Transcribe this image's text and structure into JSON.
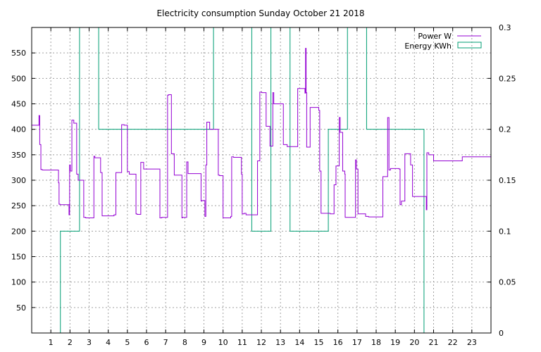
{
  "chart_data": {
    "type": "line",
    "title": "Electricity consumption Sunday October 21 2018",
    "xlim": [
      0,
      24
    ],
    "ylim": [
      0,
      600
    ],
    "y2lim": [
      0,
      0.3
    ],
    "x_ticks": [
      "1",
      "2",
      "3",
      "4",
      "5",
      "6",
      "7",
      "8",
      "9",
      "10",
      "11",
      "12",
      "13",
      "14",
      "15",
      "16",
      "17",
      "18",
      "19",
      "20",
      "21",
      "22",
      "23"
    ],
    "y_ticks": [
      "50",
      "100",
      "150",
      "200",
      "250",
      "300",
      "350",
      "400",
      "450",
      "500",
      "550"
    ],
    "y2_ticks": [
      "0",
      "0.05",
      "0.1",
      "0.15",
      "0.2",
      "0.25",
      "0.3"
    ],
    "grid": true,
    "legend_position": "top-right",
    "colors": {
      "power": "#9400d3",
      "energy": "#009e73",
      "grid": "#a0a0a0"
    },
    "series": [
      {
        "name": "Power W",
        "axis": "left",
        "style": "step-line",
        "x": [
          0,
          0.38,
          0.42,
          0.48,
          0.55,
          1.4,
          1.43,
          1.48,
          1.95,
          1.98,
          2.02,
          2.1,
          2.2,
          2.35,
          2.43,
          2.72,
          2.82,
          3.25,
          3.3,
          3.6,
          3.68,
          4.3,
          4.4,
          4.7,
          4.83,
          5.0,
          5.1,
          5.45,
          5.5,
          5.7,
          5.85,
          6.7,
          6.8,
          7.1,
          7.15,
          7.3,
          7.45,
          7.85,
          7.88,
          8.1,
          8.17,
          8.85,
          8.9,
          9.05,
          9.1,
          9.15,
          9.3,
          9.75,
          9.82,
          10.0,
          10.4,
          10.45,
          10.55,
          10.96,
          11.0,
          11.1,
          11.2,
          11.8,
          11.92,
          12.02,
          12.25,
          12.45,
          12.6,
          12.65,
          13.15,
          13.35,
          13.9,
          14.28,
          14.31,
          14.34,
          14.37,
          14.55,
          15.0,
          15.05,
          15.12,
          15.6,
          15.8,
          15.9,
          16.07,
          16.12,
          16.25,
          16.31,
          16.36,
          16.38,
          16.92,
          16.97,
          17.05,
          17.45,
          17.6,
          18.35,
          18.6,
          18.67,
          18.75,
          19.2,
          19.25,
          19.32,
          19.5,
          19.8,
          19.9,
          20.05,
          20.62,
          20.65,
          20.75,
          21.0,
          21.1,
          21.4,
          22.5,
          24.0
        ],
        "values": [
          408,
          427,
          370,
          321,
          320,
          295,
          253,
          252,
          232,
          330,
          318,
          418,
          412,
          312,
          300,
          227,
          226,
          347,
          344,
          315,
          230,
          232,
          315,
          409,
          408,
          317,
          312,
          234,
          233,
          335,
          322,
          226,
          227,
          467,
          468,
          352,
          310,
          226,
          227,
          336,
          313,
          259,
          260,
          229,
          330,
          414,
          400,
          310,
          309,
          226,
          229,
          346,
          345,
          312,
          234,
          235,
          232,
          338,
          473,
          472,
          406,
          367,
          472,
          450,
          370,
          366,
          480,
          471,
          559,
          472,
          365,
          443,
          437,
          318,
          235,
          234,
          291,
          328,
          423,
          394,
          318,
          318,
          312,
          227,
          340,
          322,
          234,
          229,
          228,
          307,
          423,
          320,
          323,
          322,
          252,
          259,
          352,
          330,
          268,
          268,
          242,
          354,
          350,
          338,
          338,
          338,
          346,
          346
        ]
      },
      {
        "name": "Energy KWh",
        "axis": "right",
        "style": "histogram-steps",
        "x": [
          0.5,
          1.5,
          2.5,
          3.5,
          4.5,
          5.5,
          6.5,
          7.5,
          8.5,
          9.5,
          10.5,
          11.5,
          12.5,
          13.5,
          14.5,
          15.5,
          16.5,
          17.5,
          18.5,
          19.5,
          20.5,
          21.5,
          22.5,
          23.5
        ],
        "values": [
          0,
          0.1,
          0.3,
          0.2,
          0.2,
          0.2,
          0.2,
          0.2,
          0.2,
          0.3,
          0.3,
          0.1,
          0.3,
          0.1,
          0.1,
          0.2,
          0.3,
          0.2,
          0.2,
          0.2,
          0,
          0,
          0,
          0
        ]
      }
    ]
  }
}
